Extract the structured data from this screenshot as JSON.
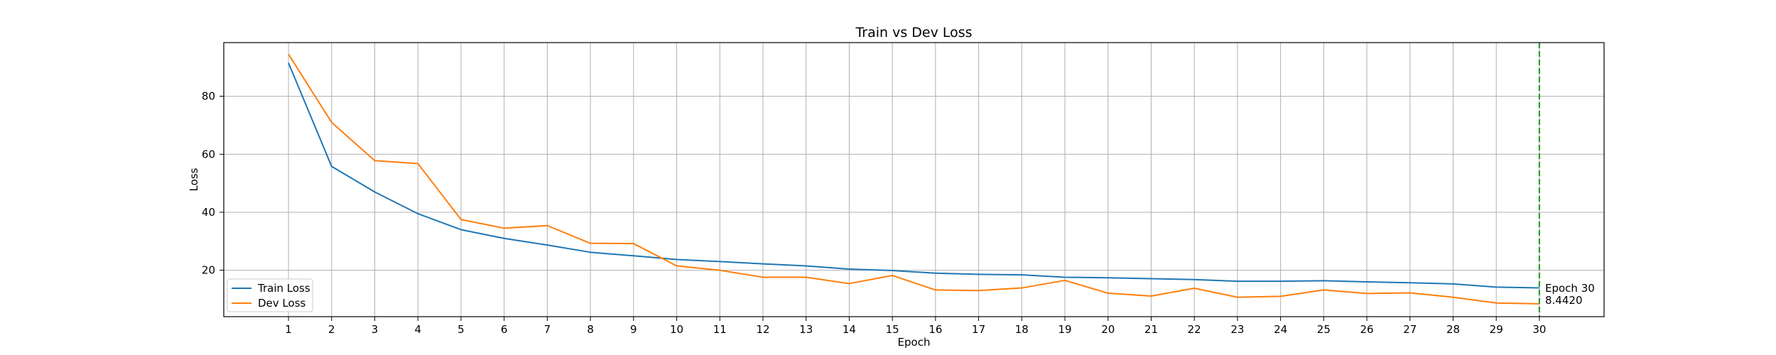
{
  "chart_data": {
    "type": "line",
    "title": "Train vs Dev Loss",
    "xlabel": "Epoch",
    "ylabel": "Loss",
    "x": [
      1,
      2,
      3,
      4,
      5,
      6,
      7,
      8,
      9,
      10,
      11,
      12,
      13,
      14,
      15,
      16,
      17,
      18,
      19,
      20,
      21,
      22,
      23,
      24,
      25,
      26,
      27,
      28,
      29,
      30
    ],
    "xlim": [
      -0.5,
      31.5
    ],
    "ylim": [
      4.0,
      98.5
    ],
    "yticks": [
      20,
      40,
      60,
      80
    ],
    "grid": true,
    "legend_position": "lower-left",
    "series": [
      {
        "name": "Train Loss",
        "color": "#1f77b4",
        "values": [
          91.5,
          55.8,
          47.0,
          39.5,
          34.0,
          31.0,
          28.7,
          26.2,
          25.0,
          23.7,
          23.0,
          22.2,
          21.5,
          20.4,
          19.9,
          19.0,
          18.6,
          18.4,
          17.6,
          17.4,
          17.1,
          16.8,
          16.2,
          16.2,
          16.4,
          16.0,
          15.7,
          15.3,
          14.2,
          13.9
        ]
      },
      {
        "name": "Dev Loss",
        "color": "#ff7f0e",
        "values": [
          94.5,
          71.0,
          57.8,
          56.8,
          37.5,
          34.5,
          35.4,
          29.3,
          29.2,
          21.5,
          20.0,
          17.6,
          17.6,
          15.4,
          18.2,
          13.2,
          13.0,
          13.9,
          16.5,
          12.1,
          11.1,
          13.8,
          10.7,
          11.0,
          13.2,
          12.0,
          12.2,
          10.7,
          8.7,
          8.442
        ]
      }
    ],
    "marker": {
      "epoch": 30,
      "color": "#2ca02c",
      "label_line1": "Epoch 30",
      "label_line2": "8.4420"
    }
  }
}
